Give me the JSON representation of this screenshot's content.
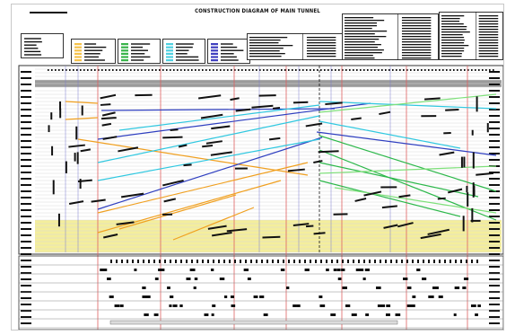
{
  "drawing": {
    "title": "CONSTRUCTION DIAGRAM OF MAIN TUNNEL"
  },
  "legend": {
    "swatch_colors": [
      "#f5c24a",
      "#38b44a",
      "#4fd0e0",
      "#3f3fbf"
    ]
  },
  "palette": {
    "orange": "#f0a020",
    "yellow_zone": "#f4ee9c",
    "green": "#2db84b",
    "light_green": "#7ee07a",
    "cyan": "#30c8e0",
    "blue": "#2f3fc0",
    "red_grid": "#e06060",
    "grey_band": "#9a9a9a",
    "black": "#111111"
  }
}
